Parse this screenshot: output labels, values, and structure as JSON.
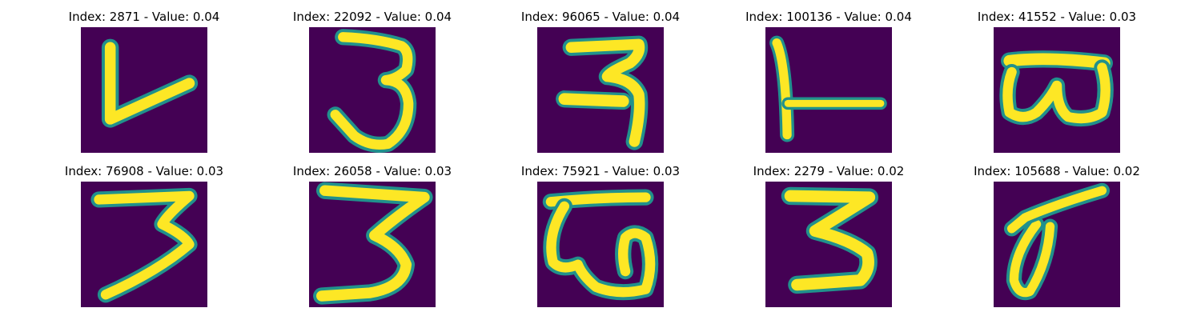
{
  "figure": {
    "background_color": "#ffffff",
    "colormap": {
      "background": "#440154",
      "edge": "#21918c",
      "mid": "#35b779",
      "stroke": "#fde725"
    },
    "panels": [
      {
        "title": "Index: 2871 - Value: 0.04",
        "glyph": "L-shape"
      },
      {
        "title": "Index: 22092 - Value: 0.04",
        "glyph": "3"
      },
      {
        "title": "Index: 96065 - Value: 0.04",
        "glyph": "ra-like character"
      },
      {
        "title": "Index: 100136 - Value: 0.04",
        "glyph": "L-shape"
      },
      {
        "title": "Index: 41552 - Value: 0.03",
        "glyph": "B-loop character"
      },
      {
        "title": "Index: 76908 - Value: 0.03",
        "glyph": "3"
      },
      {
        "title": "Index: 26058 - Value: 0.03",
        "glyph": "3"
      },
      {
        "title": "Index: 75921 - Value: 0.03",
        "glyph": "w-loop character"
      },
      {
        "title": "Index: 2279 - Value: 0.02",
        "glyph": "3"
      },
      {
        "title": "Index: 105688 - Value: 0.02",
        "glyph": "0-with-stroke"
      }
    ]
  }
}
